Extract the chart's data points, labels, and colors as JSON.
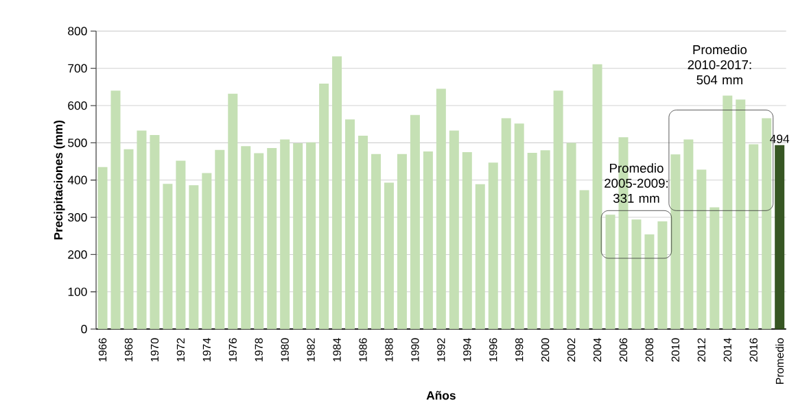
{
  "chart_data": {
    "type": "bar",
    "xlabel": "Años",
    "ylabel": "Precipitaciones (mm)",
    "categories": [
      "1966",
      null,
      "1968",
      null,
      "1970",
      null,
      "1972",
      null,
      "1974",
      null,
      "1976",
      null,
      "1978",
      null,
      "1980",
      null,
      "1982",
      null,
      "1984",
      null,
      "1986",
      null,
      "1988",
      null,
      "1990",
      null,
      "1992",
      null,
      "1994",
      null,
      "1996",
      null,
      "1998",
      null,
      "2000",
      null,
      "2002",
      null,
      "2004",
      null,
      "2006",
      null,
      "2008",
      null,
      "2010",
      null,
      "2012",
      null,
      "2014",
      null,
      "2016",
      null,
      "Promedio"
    ],
    "values": [
      435,
      640,
      483,
      533,
      521,
      390,
      452,
      386,
      419,
      481,
      632,
      491,
      472,
      486,
      509,
      499,
      501,
      659,
      732,
      563,
      519,
      470,
      393,
      470,
      575,
      477,
      645,
      533,
      475,
      389,
      447,
      566,
      552,
      473,
      480,
      640,
      500,
      373,
      711,
      307,
      515,
      294,
      254,
      289,
      469,
      509,
      428,
      327,
      627,
      616,
      496,
      566,
      494
    ],
    "colors": [
      "#c5e0b4",
      "#c5e0b4",
      "#c5e0b4",
      "#c5e0b4",
      "#c5e0b4",
      "#c5e0b4",
      "#c5e0b4",
      "#c5e0b4",
      "#c5e0b4",
      "#c5e0b4",
      "#c5e0b4",
      "#c5e0b4",
      "#c5e0b4",
      "#c5e0b4",
      "#c5e0b4",
      "#c5e0b4",
      "#c5e0b4",
      "#c5e0b4",
      "#c5e0b4",
      "#c5e0b4",
      "#c5e0b4",
      "#c5e0b4",
      "#c5e0b4",
      "#c5e0b4",
      "#c5e0b4",
      "#c5e0b4",
      "#c5e0b4",
      "#c5e0b4",
      "#c5e0b4",
      "#c5e0b4",
      "#c5e0b4",
      "#c5e0b4",
      "#c5e0b4",
      "#c5e0b4",
      "#c5e0b4",
      "#c5e0b4",
      "#c5e0b4",
      "#c5e0b4",
      "#c5e0b4",
      "#c5e0b4",
      "#c5e0b4",
      "#c5e0b4",
      "#c5e0b4",
      "#c5e0b4",
      "#c5e0b4",
      "#c5e0b4",
      "#c5e0b4",
      "#c5e0b4",
      "#c5e0b4",
      "#c5e0b4",
      "#c5e0b4",
      "#c5e0b4",
      "#375623"
    ],
    "value_labels": [
      null,
      null,
      null,
      null,
      null,
      null,
      null,
      null,
      null,
      null,
      null,
      null,
      null,
      null,
      null,
      null,
      null,
      null,
      null,
      null,
      null,
      null,
      null,
      null,
      null,
      null,
      null,
      null,
      null,
      null,
      null,
      null,
      null,
      null,
      null,
      null,
      null,
      null,
      null,
      null,
      null,
      null,
      null,
      null,
      null,
      null,
      null,
      null,
      null,
      null,
      null,
      null,
      "494"
    ],
    "ylim": [
      0,
      800
    ],
    "yticks": [
      0,
      100,
      200,
      300,
      400,
      500,
      600,
      700,
      800
    ],
    "grid": "y",
    "annotations": [
      "Promedio 2005-2009: 331 mm",
      "Promedio 2010-2017: 504 mm"
    ]
  }
}
